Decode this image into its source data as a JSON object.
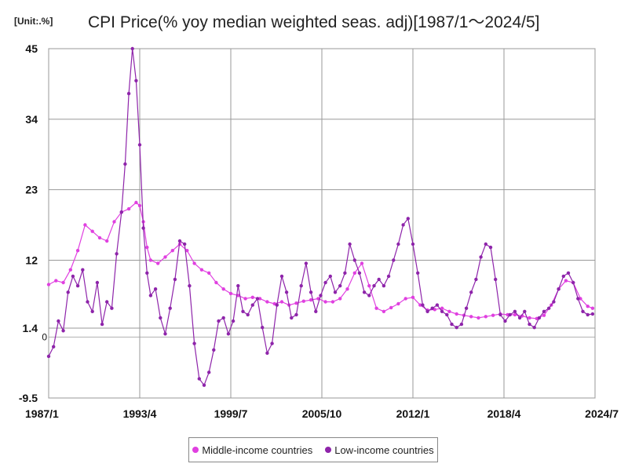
{
  "chart_data": {
    "type": "line",
    "title": "CPI Price(% yoy median weighted seas. adj)[1987/1～2024/5]",
    "unit_label": "[Unit:.%]",
    "xlabel": "",
    "ylabel": "",
    "x_range": [
      "1987-01",
      "2024-07"
    ],
    "ylim": [
      -9.5,
      45
    ],
    "y_ticks": [
      -9.5,
      1.4,
      12,
      23,
      34,
      45
    ],
    "y_tick_labels": [
      "-9.5",
      "1.4",
      "12",
      "23",
      "34",
      "45"
    ],
    "zero_label": "0",
    "x_ticks": [
      "1987-01",
      "1993-04",
      "1999-07",
      "2005-10",
      "2012-01",
      "2018-04",
      "2024-07"
    ],
    "x_tick_labels": [
      "1987/1",
      "1993/4",
      "1999/7",
      "2005/10",
      "2012/1",
      "2018/4",
      "2024/7"
    ],
    "grid": true,
    "legend_position": "bottom",
    "series": [
      {
        "name": "Middle-income countries",
        "color": "#e040e0",
        "points": [
          [
            "1987-01",
            8.2
          ],
          [
            "1987-07",
            8.8
          ],
          [
            "1988-01",
            8.5
          ],
          [
            "1988-07",
            10.5
          ],
          [
            "1989-01",
            13.5
          ],
          [
            "1989-07",
            17.5
          ],
          [
            "1990-01",
            16.5
          ],
          [
            "1990-07",
            15.5
          ],
          [
            "1991-01",
            15.0
          ],
          [
            "1991-07",
            18.0
          ],
          [
            "1992-01",
            19.5
          ],
          [
            "1992-07",
            20.0
          ],
          [
            "1993-01",
            21.0
          ],
          [
            "1993-04",
            20.5
          ],
          [
            "1993-07",
            18.0
          ],
          [
            "1993-10",
            14.0
          ],
          [
            "1994-01",
            12.0
          ],
          [
            "1994-07",
            11.5
          ],
          [
            "1995-01",
            12.5
          ],
          [
            "1995-07",
            13.5
          ],
          [
            "1996-01",
            14.5
          ],
          [
            "1996-07",
            13.5
          ],
          [
            "1997-01",
            11.5
          ],
          [
            "1997-07",
            10.5
          ],
          [
            "1998-01",
            10.0
          ],
          [
            "1998-07",
            8.5
          ],
          [
            "1999-01",
            7.5
          ],
          [
            "1999-07",
            6.8
          ],
          [
            "2000-01",
            6.5
          ],
          [
            "2000-07",
            6.0
          ],
          [
            "2001-01",
            6.2
          ],
          [
            "2001-07",
            6.0
          ],
          [
            "2002-01",
            5.5
          ],
          [
            "2002-07",
            5.2
          ],
          [
            "2003-01",
            5.5
          ],
          [
            "2003-07",
            5.0
          ],
          [
            "2004-01",
            5.3
          ],
          [
            "2004-07",
            5.6
          ],
          [
            "2005-01",
            5.8
          ],
          [
            "2005-07",
            6.0
          ],
          [
            "2006-01",
            5.5
          ],
          [
            "2006-07",
            5.5
          ],
          [
            "2007-01",
            6.0
          ],
          [
            "2007-07",
            7.5
          ],
          [
            "2008-01",
            10.0
          ],
          [
            "2008-07",
            11.5
          ],
          [
            "2009-01",
            8.0
          ],
          [
            "2009-07",
            4.5
          ],
          [
            "2010-01",
            4.0
          ],
          [
            "2010-07",
            4.6
          ],
          [
            "2011-01",
            5.2
          ],
          [
            "2011-07",
            6.0
          ],
          [
            "2012-01",
            6.2
          ],
          [
            "2012-07",
            5.0
          ],
          [
            "2013-01",
            4.2
          ],
          [
            "2013-07",
            4.3
          ],
          [
            "2014-01",
            4.5
          ],
          [
            "2014-07",
            4.0
          ],
          [
            "2015-01",
            3.6
          ],
          [
            "2015-07",
            3.4
          ],
          [
            "2016-01",
            3.2
          ],
          [
            "2016-07",
            3.0
          ],
          [
            "2017-01",
            3.2
          ],
          [
            "2017-07",
            3.4
          ],
          [
            "2018-01",
            3.6
          ],
          [
            "2018-07",
            3.5
          ],
          [
            "2019-01",
            3.5
          ],
          [
            "2019-07",
            3.3
          ],
          [
            "2020-01",
            3.0
          ],
          [
            "2020-07",
            2.9
          ],
          [
            "2021-01",
            3.4
          ],
          [
            "2021-07",
            5.0
          ],
          [
            "2022-01",
            7.5
          ],
          [
            "2022-07",
            8.8
          ],
          [
            "2023-01",
            8.5
          ],
          [
            "2023-07",
            6.0
          ],
          [
            "2024-01",
            4.8
          ],
          [
            "2024-05",
            4.5
          ]
        ]
      },
      {
        "name": "Low-income countries",
        "color": "#8e24aa",
        "points": [
          [
            "1987-01",
            -3.0
          ],
          [
            "1987-05",
            -1.5
          ],
          [
            "1987-09",
            2.5
          ],
          [
            "1988-01",
            1.0
          ],
          [
            "1988-05",
            7.0
          ],
          [
            "1988-09",
            9.5
          ],
          [
            "1989-01",
            8.0
          ],
          [
            "1989-05",
            10.5
          ],
          [
            "1989-09",
            5.5
          ],
          [
            "1990-01",
            4.0
          ],
          [
            "1990-05",
            8.5
          ],
          [
            "1990-09",
            2.0
          ],
          [
            "1991-01",
            5.5
          ],
          [
            "1991-05",
            4.5
          ],
          [
            "1991-09",
            13.0
          ],
          [
            "1992-01",
            19.5
          ],
          [
            "1992-04",
            27.0
          ],
          [
            "1992-07",
            38.0
          ],
          [
            "1992-10",
            45.0
          ],
          [
            "1993-01",
            40.0
          ],
          [
            "1993-04",
            30.0
          ],
          [
            "1993-07",
            17.0
          ],
          [
            "1993-10",
            10.0
          ],
          [
            "1994-01",
            6.5
          ],
          [
            "1994-05",
            7.5
          ],
          [
            "1994-09",
            3.0
          ],
          [
            "1995-01",
            0.5
          ],
          [
            "1995-05",
            4.5
          ],
          [
            "1995-09",
            9.0
          ],
          [
            "1996-01",
            15.0
          ],
          [
            "1996-05",
            14.5
          ],
          [
            "1996-09",
            8.0
          ],
          [
            "1997-01",
            -1.0
          ],
          [
            "1997-05",
            -6.5
          ],
          [
            "1997-09",
            -7.5
          ],
          [
            "1998-01",
            -5.5
          ],
          [
            "1998-05",
            -2.0
          ],
          [
            "1998-09",
            2.5
          ],
          [
            "1999-01",
            3.0
          ],
          [
            "1999-05",
            0.5
          ],
          [
            "1999-09",
            2.5
          ],
          [
            "2000-01",
            8.0
          ],
          [
            "2000-05",
            4.0
          ],
          [
            "2000-09",
            3.5
          ],
          [
            "2001-01",
            5.0
          ],
          [
            "2001-05",
            6.0
          ],
          [
            "2001-09",
            1.5
          ],
          [
            "2002-01",
            -2.5
          ],
          [
            "2002-05",
            -1.0
          ],
          [
            "2002-09",
            5.0
          ],
          [
            "2003-01",
            9.5
          ],
          [
            "2003-05",
            7.0
          ],
          [
            "2003-09",
            3.0
          ],
          [
            "2004-01",
            3.5
          ],
          [
            "2004-05",
            8.0
          ],
          [
            "2004-09",
            11.5
          ],
          [
            "2005-01",
            7.0
          ],
          [
            "2005-05",
            4.0
          ],
          [
            "2005-09",
            6.5
          ],
          [
            "2006-01",
            8.5
          ],
          [
            "2006-05",
            9.5
          ],
          [
            "2006-09",
            7.0
          ],
          [
            "2007-01",
            8.0
          ],
          [
            "2007-05",
            10.0
          ],
          [
            "2007-09",
            14.5
          ],
          [
            "2008-01",
            12.0
          ],
          [
            "2008-05",
            10.0
          ],
          [
            "2008-09",
            7.0
          ],
          [
            "2009-01",
            6.5
          ],
          [
            "2009-05",
            8.0
          ],
          [
            "2009-09",
            9.0
          ],
          [
            "2010-01",
            8.0
          ],
          [
            "2010-05",
            9.5
          ],
          [
            "2010-09",
            12.0
          ],
          [
            "2011-01",
            14.5
          ],
          [
            "2011-05",
            17.5
          ],
          [
            "2011-09",
            18.5
          ],
          [
            "2012-01",
            14.5
          ],
          [
            "2012-05",
            10.0
          ],
          [
            "2012-09",
            5.0
          ],
          [
            "2013-01",
            4.0
          ],
          [
            "2013-05",
            4.5
          ],
          [
            "2013-09",
            5.0
          ],
          [
            "2014-01",
            4.0
          ],
          [
            "2014-05",
            3.5
          ],
          [
            "2014-09",
            2.0
          ],
          [
            "2015-01",
            1.5
          ],
          [
            "2015-05",
            2.0
          ],
          [
            "2015-09",
            4.5
          ],
          [
            "2016-01",
            7.0
          ],
          [
            "2016-05",
            9.0
          ],
          [
            "2016-09",
            12.5
          ],
          [
            "2017-01",
            14.5
          ],
          [
            "2017-05",
            14.0
          ],
          [
            "2017-09",
            9.0
          ],
          [
            "2018-01",
            3.5
          ],
          [
            "2018-05",
            2.5
          ],
          [
            "2018-09",
            3.5
          ],
          [
            "2019-01",
            4.0
          ],
          [
            "2019-05",
            3.0
          ],
          [
            "2019-09",
            4.0
          ],
          [
            "2020-01",
            2.0
          ],
          [
            "2020-05",
            1.5
          ],
          [
            "2020-09",
            3.0
          ],
          [
            "2021-01",
            4.0
          ],
          [
            "2021-05",
            4.5
          ],
          [
            "2021-09",
            5.5
          ],
          [
            "2022-01",
            7.5
          ],
          [
            "2022-05",
            9.5
          ],
          [
            "2022-09",
            10.0
          ],
          [
            "2023-01",
            8.5
          ],
          [
            "2023-05",
            6.0
          ],
          [
            "2023-09",
            4.0
          ],
          [
            "2024-01",
            3.5
          ],
          [
            "2024-05",
            3.6
          ]
        ]
      }
    ]
  }
}
